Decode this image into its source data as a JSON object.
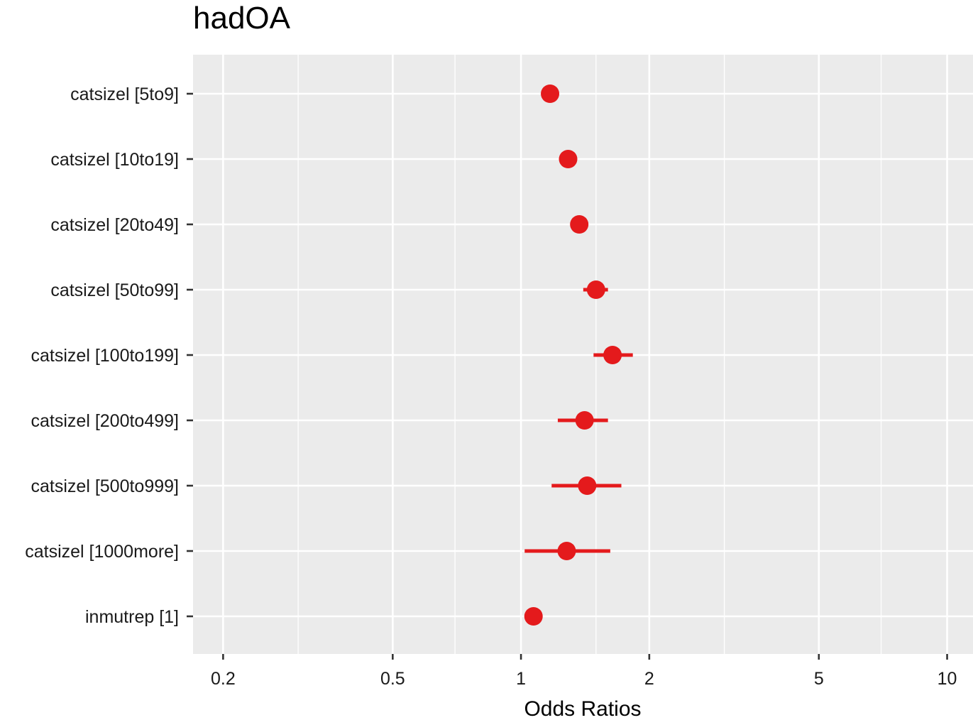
{
  "chart_data": {
    "type": "scatter",
    "title": "hadOA",
    "xlabel": "Odds Ratios",
    "ylabel": "",
    "x_scale": "log",
    "xlim": [
      0.17,
      11.5
    ],
    "x_ticks": [
      0.2,
      0.5,
      1,
      2,
      5,
      10
    ],
    "x_tick_labels": [
      "0.2",
      "0.5",
      "1",
      "2",
      "5",
      "10"
    ],
    "x_minor_ticks": [
      0.3,
      0.7,
      1.5,
      3,
      7
    ],
    "grid": true,
    "legend": "none",
    "categories": [
      "catsizel [5to9]",
      "catsizel [10to19]",
      "catsizel [20to49]",
      "catsizel [50to99]",
      "catsizel [100to199]",
      "catsizel [200to499]",
      "catsizel [500to999]",
      "catsizel [1000more]",
      "inmutrep [1]"
    ],
    "series": [
      {
        "estimate": [
          1.17,
          1.29,
          1.37,
          1.5,
          1.64,
          1.41,
          1.43,
          1.28,
          1.07
        ],
        "ci_low": [
          1.14,
          1.25,
          1.33,
          1.4,
          1.48,
          1.22,
          1.18,
          1.02,
          1.03
        ],
        "ci_high": [
          1.2,
          1.33,
          1.41,
          1.6,
          1.83,
          1.6,
          1.72,
          1.62,
          1.11
        ]
      }
    ],
    "colors": {
      "point": "#e41a1c",
      "panel_background": "#ebebeb",
      "grid_line": "#ffffff",
      "tick_mark": "#333333"
    }
  }
}
